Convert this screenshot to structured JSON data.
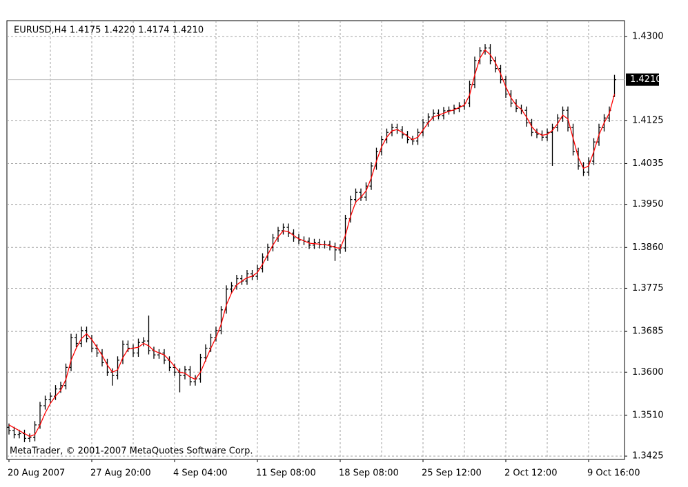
{
  "chart_data": {
    "type": "ohlc",
    "title": "EURUSD,H4  1.4175 1.4220 1.4174 1.4210",
    "footer": "MetaTrader, © 2001-2007 MetaQuotes Software Corp.",
    "grid": true,
    "ylim": [
      1.3418,
      1.4333
    ],
    "yticks": [
      {
        "value": 1.3425,
        "label": "1.3425"
      },
      {
        "value": 1.351,
        "label": "1.3510"
      },
      {
        "value": 1.36,
        "label": "1.3600"
      },
      {
        "value": 1.3685,
        "label": "1.3685"
      },
      {
        "value": 1.3775,
        "label": "1.3775"
      },
      {
        "value": 1.386,
        "label": "1.3860"
      },
      {
        "value": 1.395,
        "label": "1.3950"
      },
      {
        "value": 1.4035,
        "label": "1.4035"
      },
      {
        "value": 1.4125,
        "label": "1.4125"
      },
      {
        "value": 1.43,
        "label": "1.4300"
      }
    ],
    "current_price": {
      "value": 1.421,
      "label": "1.4210"
    },
    "categories": [
      "20 Aug 2007",
      null,
      null,
      null,
      null,
      null,
      null,
      null,
      null,
      null,
      null,
      null,
      null,
      null,
      null,
      null,
      "27 Aug 20:00",
      null,
      null,
      null,
      null,
      null,
      null,
      null,
      null,
      null,
      null,
      null,
      null,
      null,
      null,
      null,
      "4 Sep 04:00",
      null,
      null,
      null,
      null,
      null,
      null,
      null,
      null,
      null,
      null,
      null,
      null,
      null,
      null,
      null,
      "11 Sep 08:00",
      null,
      null,
      null,
      null,
      null,
      null,
      null,
      null,
      null,
      null,
      null,
      null,
      null,
      null,
      null,
      "18 Sep 08:00",
      null,
      null,
      null,
      null,
      null,
      null,
      null,
      null,
      null,
      null,
      null,
      null,
      null,
      null,
      null,
      "25 Sep 12:00",
      null,
      null,
      null,
      null,
      null,
      null,
      null,
      null,
      null,
      null,
      null,
      null,
      null,
      null,
      null,
      "2 Oct 12:00",
      null,
      null,
      null,
      null,
      null,
      null,
      null,
      null,
      null,
      null,
      null,
      null,
      null,
      null,
      null,
      "9 Oct 16:00",
      null,
      null,
      null,
      null,
      null
    ],
    "ohlc": {
      "color": "#000000",
      "open": [
        1.3485,
        1.3478,
        1.347,
        1.3472,
        1.3462,
        1.3464,
        1.349,
        1.353,
        1.3543,
        1.355,
        1.3565,
        1.3572,
        1.361,
        1.3672,
        1.366,
        1.3687,
        1.367,
        1.365,
        1.364,
        1.362,
        1.36,
        1.3593,
        1.3625,
        1.3658,
        1.365,
        1.364,
        1.3662,
        1.3665,
        1.3645,
        1.3636,
        1.364,
        1.3625,
        1.361,
        1.36,
        1.3593,
        1.3605,
        1.358,
        1.3586,
        1.363,
        1.365,
        1.3672,
        1.3687,
        1.373,
        1.3773,
        1.378,
        1.3795,
        1.379,
        1.3805,
        1.38,
        1.3816,
        1.384,
        1.386,
        1.388,
        1.3895,
        1.3902,
        1.389,
        1.388,
        1.3875,
        1.3873,
        1.3865,
        1.387,
        1.3866,
        1.3866,
        1.3862,
        1.3855,
        1.3859,
        1.392,
        1.396,
        1.3975,
        1.3965,
        1.3988,
        1.403,
        1.406,
        1.4085,
        1.41,
        1.411,
        1.4105,
        1.4095,
        1.4085,
        1.4082,
        1.41,
        1.412,
        1.4132,
        1.414,
        1.4135,
        1.4145,
        1.4146,
        1.415,
        1.4155,
        1.4161,
        1.42,
        1.425,
        1.427,
        1.4276,
        1.425,
        1.4233,
        1.421,
        1.418,
        1.4161,
        1.415,
        1.4146,
        1.412,
        1.41,
        1.4096,
        1.409,
        1.41,
        1.411,
        1.413,
        1.4146,
        1.411,
        1.406,
        1.403,
        1.4017,
        1.404,
        1.408,
        1.411,
        1.413,
        1.4175
      ],
      "high": [
        1.3493,
        1.3486,
        1.348,
        1.348,
        1.3472,
        1.3498,
        1.3538,
        1.3551,
        1.3558,
        1.3573,
        1.358,
        1.3618,
        1.368,
        1.368,
        1.3695,
        1.3695,
        1.3678,
        1.3658,
        1.3648,
        1.3628,
        1.3608,
        1.3633,
        1.3666,
        1.3666,
        1.3658,
        1.367,
        1.3673,
        1.3718,
        1.3653,
        1.3648,
        1.3648,
        1.3633,
        1.3618,
        1.3608,
        1.3613,
        1.3613,
        1.3594,
        1.3638,
        1.3658,
        1.368,
        1.3695,
        1.3738,
        1.3781,
        1.3788,
        1.3803,
        1.3803,
        1.3813,
        1.3813,
        1.3824,
        1.3848,
        1.3868,
        1.3888,
        1.3903,
        1.391,
        1.391,
        1.3898,
        1.3888,
        1.3883,
        1.3881,
        1.3878,
        1.3878,
        1.3874,
        1.3874,
        1.387,
        1.3867,
        1.3928,
        1.3968,
        1.3983,
        1.3983,
        1.3996,
        1.4038,
        1.4068,
        1.4093,
        1.4108,
        1.4118,
        1.4118,
        1.4113,
        1.4103,
        1.4093,
        1.4108,
        1.4128,
        1.414,
        1.4148,
        1.4148,
        1.4153,
        1.4154,
        1.4158,
        1.4163,
        1.4169,
        1.4208,
        1.4258,
        1.4278,
        1.4284,
        1.4284,
        1.4258,
        1.4241,
        1.4218,
        1.4188,
        1.4169,
        1.4158,
        1.4154,
        1.4128,
        1.4108,
        1.4104,
        1.4108,
        1.4118,
        1.4138,
        1.4154,
        1.4154,
        1.4118,
        1.4068,
        1.4038,
        1.4048,
        1.4088,
        1.4118,
        1.4138,
        1.4154,
        1.422
      ],
      "low": [
        1.347,
        1.3462,
        1.3462,
        1.3454,
        1.3454,
        1.3456,
        1.3482,
        1.3522,
        1.3535,
        1.3542,
        1.3557,
        1.3564,
        1.3602,
        1.3652,
        1.3652,
        1.3662,
        1.3642,
        1.3632,
        1.3612,
        1.3592,
        1.3572,
        1.3585,
        1.3617,
        1.3642,
        1.3632,
        1.3632,
        1.3654,
        1.3637,
        1.3628,
        1.3628,
        1.3617,
        1.3602,
        1.3592,
        1.3558,
        1.3585,
        1.3572,
        1.3572,
        1.3578,
        1.3622,
        1.3642,
        1.3664,
        1.3679,
        1.3722,
        1.3765,
        1.3772,
        1.3782,
        1.3782,
        1.3792,
        1.3792,
        1.3808,
        1.3832,
        1.3852,
        1.3872,
        1.3887,
        1.3882,
        1.3872,
        1.3867,
        1.3865,
        1.3857,
        1.3857,
        1.3858,
        1.3858,
        1.3854,
        1.3832,
        1.3847,
        1.3851,
        1.3912,
        1.3952,
        1.3957,
        1.3957,
        1.398,
        1.4022,
        1.4052,
        1.4077,
        1.4092,
        1.4097,
        1.4087,
        1.4077,
        1.4074,
        1.4074,
        1.4092,
        1.4112,
        1.4124,
        1.4127,
        1.4127,
        1.4137,
        1.4138,
        1.4142,
        1.4147,
        1.4153,
        1.4192,
        1.4242,
        1.4262,
        1.4242,
        1.4225,
        1.4202,
        1.4172,
        1.4153,
        1.4142,
        1.4138,
        1.4112,
        1.4092,
        1.4088,
        1.4082,
        1.4082,
        1.403,
        1.4102,
        1.4122,
        1.4102,
        1.4052,
        1.4022,
        1.4009,
        1.4009,
        1.4032,
        1.4072,
        1.4102,
        1.4122,
        1.4174
      ],
      "close": [
        1.3478,
        1.347,
        1.3472,
        1.3462,
        1.3464,
        1.349,
        1.353,
        1.3543,
        1.355,
        1.3565,
        1.3572,
        1.361,
        1.3672,
        1.366,
        1.3687,
        1.367,
        1.365,
        1.364,
        1.362,
        1.36,
        1.3593,
        1.3625,
        1.3658,
        1.365,
        1.364,
        1.3662,
        1.3665,
        1.3645,
        1.3636,
        1.364,
        1.3625,
        1.361,
        1.36,
        1.3593,
        1.3605,
        1.358,
        1.3586,
        1.363,
        1.365,
        1.3672,
        1.3687,
        1.373,
        1.3773,
        1.378,
        1.3795,
        1.379,
        1.3805,
        1.38,
        1.3816,
        1.384,
        1.386,
        1.388,
        1.3895,
        1.3902,
        1.389,
        1.388,
        1.3875,
        1.3873,
        1.3865,
        1.387,
        1.3866,
        1.3866,
        1.3862,
        1.3855,
        1.3859,
        1.392,
        1.396,
        1.3975,
        1.3965,
        1.3988,
        1.403,
        1.406,
        1.4085,
        1.41,
        1.411,
        1.4105,
        1.4095,
        1.4085,
        1.4082,
        1.41,
        1.412,
        1.4132,
        1.414,
        1.4135,
        1.4145,
        1.4146,
        1.415,
        1.4155,
        1.4161,
        1.42,
        1.425,
        1.427,
        1.4276,
        1.425,
        1.4233,
        1.421,
        1.418,
        1.4161,
        1.415,
        1.4146,
        1.412,
        1.41,
        1.4096,
        1.409,
        1.41,
        1.411,
        1.413,
        1.4146,
        1.411,
        1.406,
        1.403,
        1.4017,
        1.404,
        1.408,
        1.411,
        1.413,
        1.4146,
        1.421
      ]
    },
    "ma": {
      "color": "#ff0000",
      "values": [
        1.349,
        1.3484,
        1.3478,
        1.3472,
        1.3466,
        1.347,
        1.349,
        1.3515,
        1.3535,
        1.355,
        1.3562,
        1.3585,
        1.3625,
        1.365,
        1.367,
        1.368,
        1.3668,
        1.3652,
        1.3635,
        1.3615,
        1.36,
        1.3605,
        1.363,
        1.3648,
        1.365,
        1.3652,
        1.366,
        1.3655,
        1.3645,
        1.364,
        1.3636,
        1.3625,
        1.3612,
        1.36,
        1.3598,
        1.359,
        1.3585,
        1.36,
        1.3625,
        1.365,
        1.3672,
        1.37,
        1.374,
        1.3765,
        1.3782,
        1.379,
        1.3797,
        1.38,
        1.3808,
        1.3825,
        1.3845,
        1.3865,
        1.3882,
        1.3895,
        1.3893,
        1.3885,
        1.3878,
        1.3874,
        1.3869,
        1.3868,
        1.3867,
        1.3866,
        1.3864,
        1.386,
        1.3858,
        1.3885,
        1.3925,
        1.3955,
        1.3965,
        1.3978,
        1.4005,
        1.404,
        1.407,
        1.409,
        1.4103,
        1.4106,
        1.41,
        1.4092,
        1.4085,
        1.409,
        1.4105,
        1.412,
        1.4132,
        1.4136,
        1.414,
        1.4144,
        1.4147,
        1.4152,
        1.4157,
        1.4178,
        1.422,
        1.4255,
        1.4272,
        1.4262,
        1.4245,
        1.4222,
        1.4195,
        1.4172,
        1.4157,
        1.4148,
        1.4132,
        1.4112,
        1.41,
        1.4094,
        1.4096,
        1.4104,
        1.4118,
        1.4136,
        1.4128,
        1.4088,
        1.4048,
        1.4025,
        1.403,
        1.406,
        1.4095,
        1.412,
        1.414,
        1.418
      ]
    }
  }
}
